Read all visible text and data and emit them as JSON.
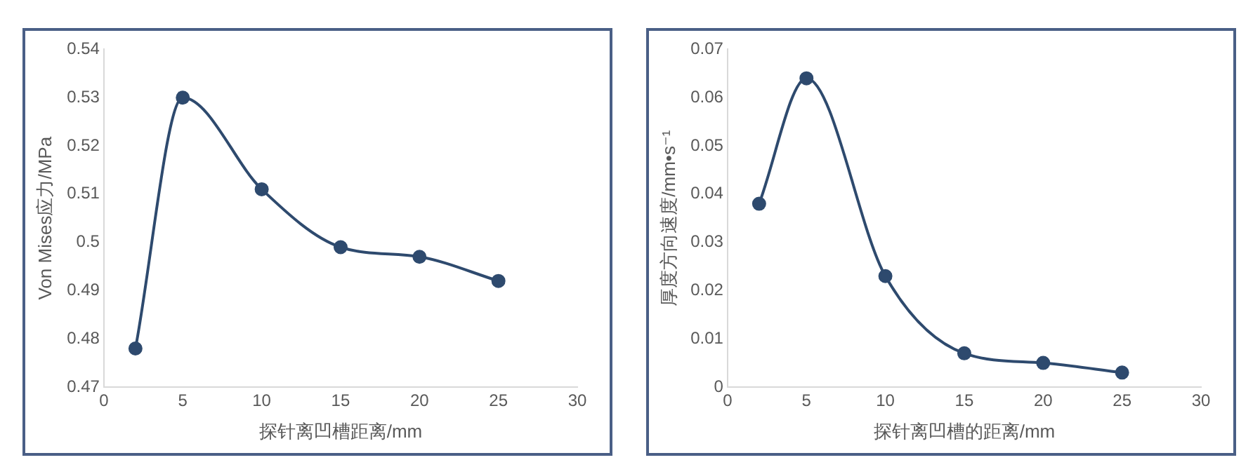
{
  "chart_data": [
    {
      "type": "line",
      "xlabel": "探针离凹槽距离/mm",
      "ylabel": "Von Mises应力/MPa",
      "x": [
        2,
        5,
        10,
        15,
        20,
        25
      ],
      "marker": "circle",
      "line_style": "solid",
      "series": [
        {
          "color": "#2e4a6e",
          "values": [
            0.478,
            0.53,
            0.511,
            0.499,
            0.497,
            0.492
          ]
        }
      ],
      "xlim": [
        0,
        30
      ],
      "xticks": [
        0,
        5,
        10,
        15,
        20,
        25,
        30
      ],
      "ylim": [
        0.47,
        0.54
      ],
      "yticks": [
        0.47,
        0.48,
        0.49,
        0.5,
        0.51,
        0.52,
        0.53,
        0.54
      ]
    },
    {
      "type": "line",
      "xlabel": "探针离凹槽的距离/mm",
      "ylabel": "厚度方向速度/mm•s⁻¹",
      "x": [
        2,
        5,
        10,
        15,
        20,
        25
      ],
      "marker": "circle",
      "line_style": "solid",
      "series": [
        {
          "color": "#2e4a6e",
          "values": [
            0.038,
            0.064,
            0.023,
            0.007,
            0.005,
            0.003
          ]
        }
      ],
      "xlim": [
        0,
        30
      ],
      "xticks": [
        0,
        5,
        10,
        15,
        20,
        25,
        30
      ],
      "ylim": [
        0,
        0.07
      ],
      "yticks": [
        0,
        0.01,
        0.02,
        0.03,
        0.04,
        0.05,
        0.06,
        0.07
      ]
    }
  ]
}
